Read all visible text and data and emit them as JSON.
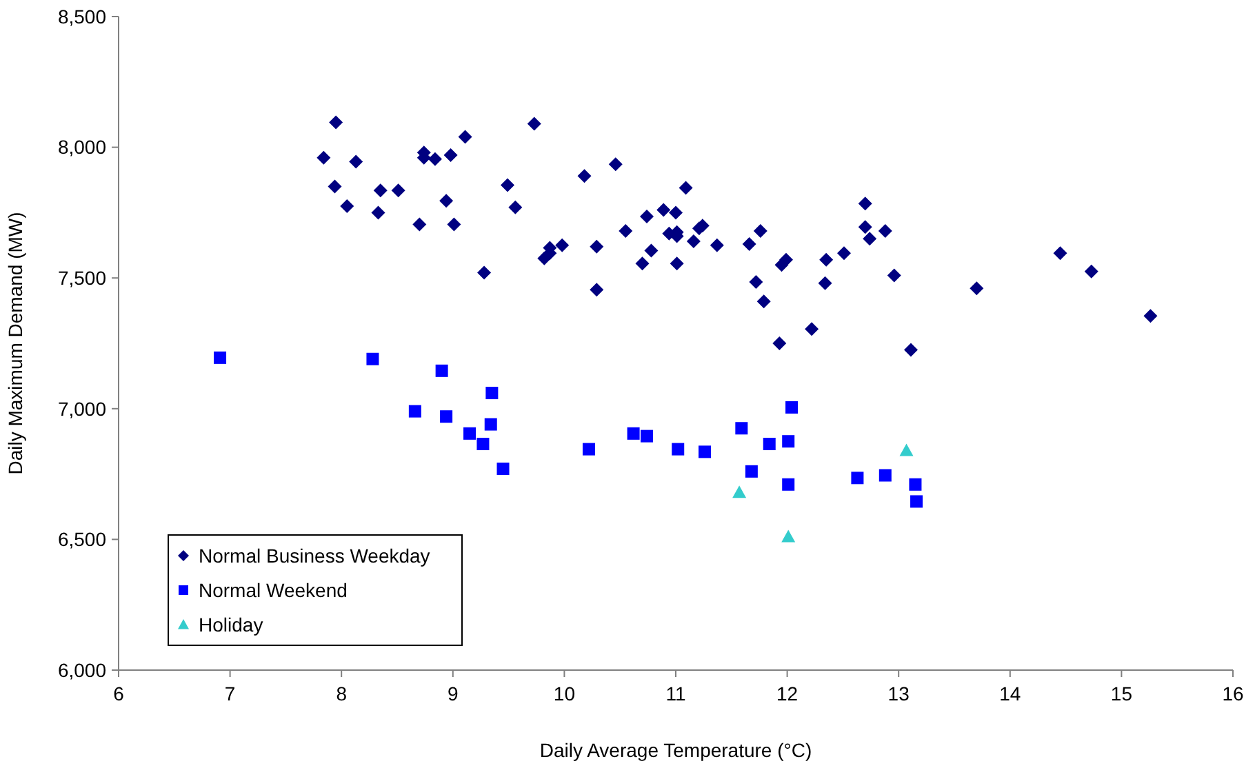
{
  "chart_data": {
    "type": "scatter",
    "xlabel": "Daily Average Temperature (°C)",
    "ylabel": "Daily Maximum Demand (MW)",
    "xlim": [
      6,
      16
    ],
    "xticks": [
      6,
      7,
      8,
      9,
      10,
      11,
      12,
      13,
      14,
      15,
      16
    ],
    "ylim": [
      6000,
      8500
    ],
    "yticks": [
      {
        "value": 6000,
        "label": "6,000"
      },
      {
        "value": 6500,
        "label": "6,500"
      },
      {
        "value": 7000,
        "label": "7,000"
      },
      {
        "value": 7500,
        "label": "7,500"
      },
      {
        "value": 8000,
        "label": "8,000"
      },
      {
        "value": 8500,
        "label": "8,500"
      }
    ],
    "grid": false,
    "legend": "bottom left",
    "series": [
      {
        "name": "Normal Business Weekday",
        "color": "#000080",
        "marker": "diamond",
        "x": [
          7.95,
          7.84,
          8.13,
          7.94,
          8.05,
          8.35,
          8.51,
          8.33,
          8.7,
          8.74,
          8.74,
          8.84,
          8.98,
          9.11,
          8.94,
          9.01,
          9.49,
          9.56,
          9.73,
          9.28,
          9.98,
          9.87,
          9.82,
          9.87,
          10.18,
          10.46,
          10.29,
          10.29,
          10.55,
          10.74,
          10.89,
          11.0,
          11.09,
          10.7,
          10.78,
          10.94,
          11.01,
          11.01,
          11.01,
          11.16,
          11.21,
          11.24,
          11.37,
          11.66,
          11.76,
          11.72,
          11.79,
          11.95,
          11.99,
          11.93,
          12.22,
          12.35,
          12.34,
          12.51,
          12.7,
          12.7,
          12.74,
          12.88,
          12.96,
          13.11,
          13.7,
          14.45,
          14.73,
          15.26
        ],
        "values": [
          8095,
          7960,
          7945,
          7850,
          7775,
          7835,
          7835,
          7750,
          7705,
          7980,
          7960,
          7955,
          7970,
          8040,
          7795,
          7705,
          7855,
          7770,
          8090,
          7520,
          7625,
          7615,
          7575,
          7595,
          7890,
          7935,
          7620,
          7455,
          7680,
          7735,
          7760,
          7750,
          7845,
          7555,
          7605,
          7670,
          7675,
          7660,
          7555,
          7640,
          7690,
          7700,
          7625,
          7630,
          7680,
          7485,
          7410,
          7550,
          7570,
          7250,
          7305,
          7570,
          7480,
          7595,
          7785,
          7695,
          7650,
          7680,
          7510,
          7225,
          7460,
          7595,
          7525,
          7355
        ]
      },
      {
        "name": "Normal Weekend",
        "color": "#0000ff",
        "marker": "square",
        "x": [
          6.91,
          8.28,
          8.9,
          9.35,
          8.66,
          8.94,
          9.34,
          9.15,
          9.27,
          9.45,
          10.22,
          10.62,
          10.74,
          11.02,
          11.26,
          11.59,
          12.04,
          11.84,
          12.01,
          11.68,
          12.01,
          12.63,
          12.88,
          13.15,
          13.16
        ],
        "values": [
          7195,
          7190,
          7145,
          7060,
          6990,
          6970,
          6940,
          6905,
          6865,
          6770,
          6845,
          6905,
          6895,
          6845,
          6835,
          6925,
          7005,
          6865,
          6875,
          6760,
          6710,
          6735,
          6745,
          6710,
          6645
        ]
      },
      {
        "name": "Holiday",
        "color": "#33cccc",
        "marker": "triangle",
        "x": [
          13.07,
          11.57,
          12.01
        ],
        "values": [
          6840,
          6680,
          6510
        ]
      }
    ]
  }
}
